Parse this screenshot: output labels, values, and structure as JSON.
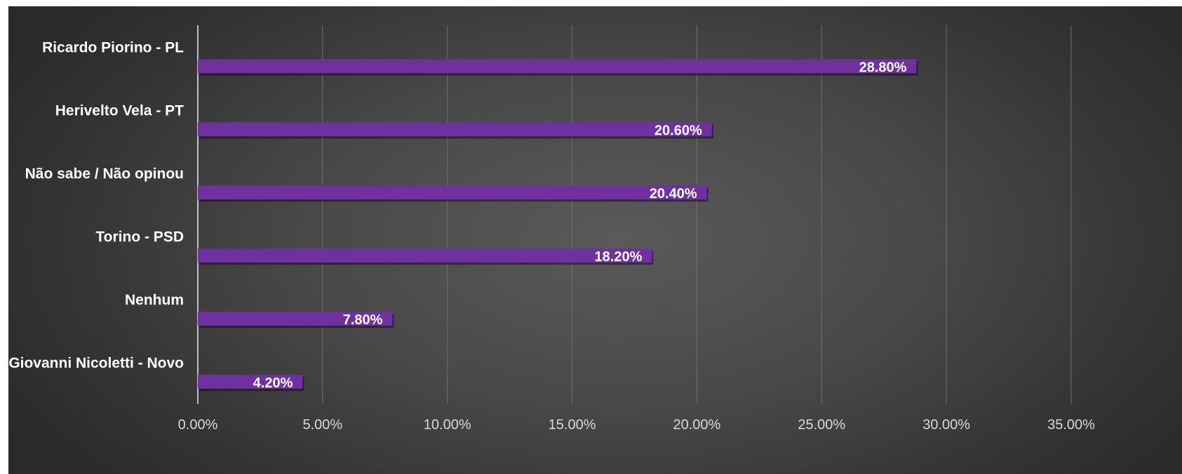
{
  "chart_data": {
    "type": "bar",
    "orientation": "horizontal",
    "categories": [
      "Ricardo Piorino - PL",
      "Herivelto Vela - PT",
      "Não sabe / Não opinou",
      "Torino - PSD",
      "Nenhum",
      "Giovanni Nicoletti - Novo"
    ],
    "values": [
      28.8,
      20.6,
      20.4,
      18.2,
      7.8,
      4.2
    ],
    "data_labels": [
      "28.80%",
      "20.60%",
      "20.40%",
      "18.20%",
      "7.80%",
      "4.20%"
    ],
    "x_ticks": [
      "0.00%",
      "5.00%",
      "10.00%",
      "15.00%",
      "20.00%",
      "25.00%",
      "30.00%",
      "35.00%"
    ],
    "xlim": [
      0,
      35
    ],
    "grid": true,
    "bar_color": "#7030a0",
    "title": "",
    "xlabel": "",
    "ylabel": ""
  }
}
